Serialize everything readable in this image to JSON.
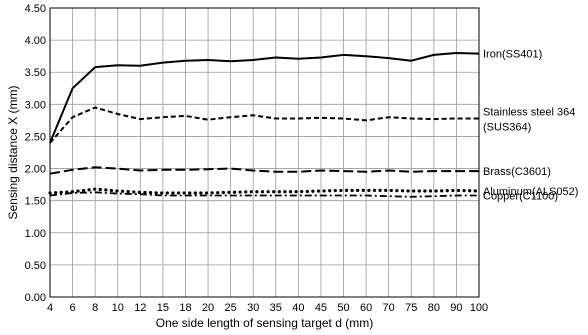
{
  "chart_data": {
    "type": "line",
    "title": "",
    "xlabel": "One side length of sensing target d (mm)",
    "ylabel": "Sensing distance X (mm)",
    "x_tick_labels": [
      "4",
      "6",
      "8",
      "10",
      "12",
      "15",
      "18",
      "20",
      "25",
      "30",
      "35",
      "40",
      "45",
      "50",
      "60",
      "70",
      "75",
      "80",
      "90",
      "100"
    ],
    "y_ticks": [
      "0.00",
      "0.50",
      "1.00",
      "1.50",
      "2.00",
      "2.50",
      "3.00",
      "3.50",
      "4.00",
      "4.50"
    ],
    "ylim": [
      0,
      4.5
    ],
    "grid": true,
    "legend": "labels at right end of each line",
    "series": [
      {
        "name": "Iron(SS401)",
        "style": "solid",
        "values": [
          2.4,
          3.25,
          3.58,
          3.61,
          3.6,
          3.65,
          3.68,
          3.69,
          3.67,
          3.69,
          3.73,
          3.71,
          3.73,
          3.77,
          3.75,
          3.72,
          3.68,
          3.77,
          3.8,
          3.79
        ]
      },
      {
        "name": "Stainless steel 364",
        "name_line2": "(SUS364)",
        "style": "short-dash",
        "values": [
          2.4,
          2.8,
          2.95,
          2.85,
          2.77,
          2.8,
          2.82,
          2.76,
          2.8,
          2.83,
          2.78,
          2.78,
          2.79,
          2.78,
          2.75,
          2.8,
          2.78,
          2.77,
          2.78,
          2.78
        ]
      },
      {
        "name": "Brass(C3601)",
        "style": "long-dash",
        "values": [
          1.92,
          1.98,
          2.02,
          2.0,
          1.97,
          1.98,
          1.98,
          1.99,
          2.0,
          1.97,
          1.95,
          1.95,
          1.97,
          1.96,
          1.95,
          1.97,
          1.95,
          1.96,
          1.96,
          1.96
        ]
      },
      {
        "name": "Aluminum(ALS052)",
        "style": "dotted",
        "values": [
          1.62,
          1.64,
          1.68,
          1.65,
          1.63,
          1.62,
          1.62,
          1.62,
          1.63,
          1.64,
          1.64,
          1.64,
          1.65,
          1.66,
          1.66,
          1.66,
          1.65,
          1.65,
          1.66,
          1.65
        ]
      },
      {
        "name": "Copper(C1100)",
        "style": "dash-dot",
        "values": [
          1.58,
          1.62,
          1.63,
          1.61,
          1.6,
          1.58,
          1.58,
          1.58,
          1.58,
          1.58,
          1.58,
          1.58,
          1.58,
          1.58,
          1.58,
          1.57,
          1.56,
          1.57,
          1.58,
          1.58
        ]
      }
    ]
  }
}
